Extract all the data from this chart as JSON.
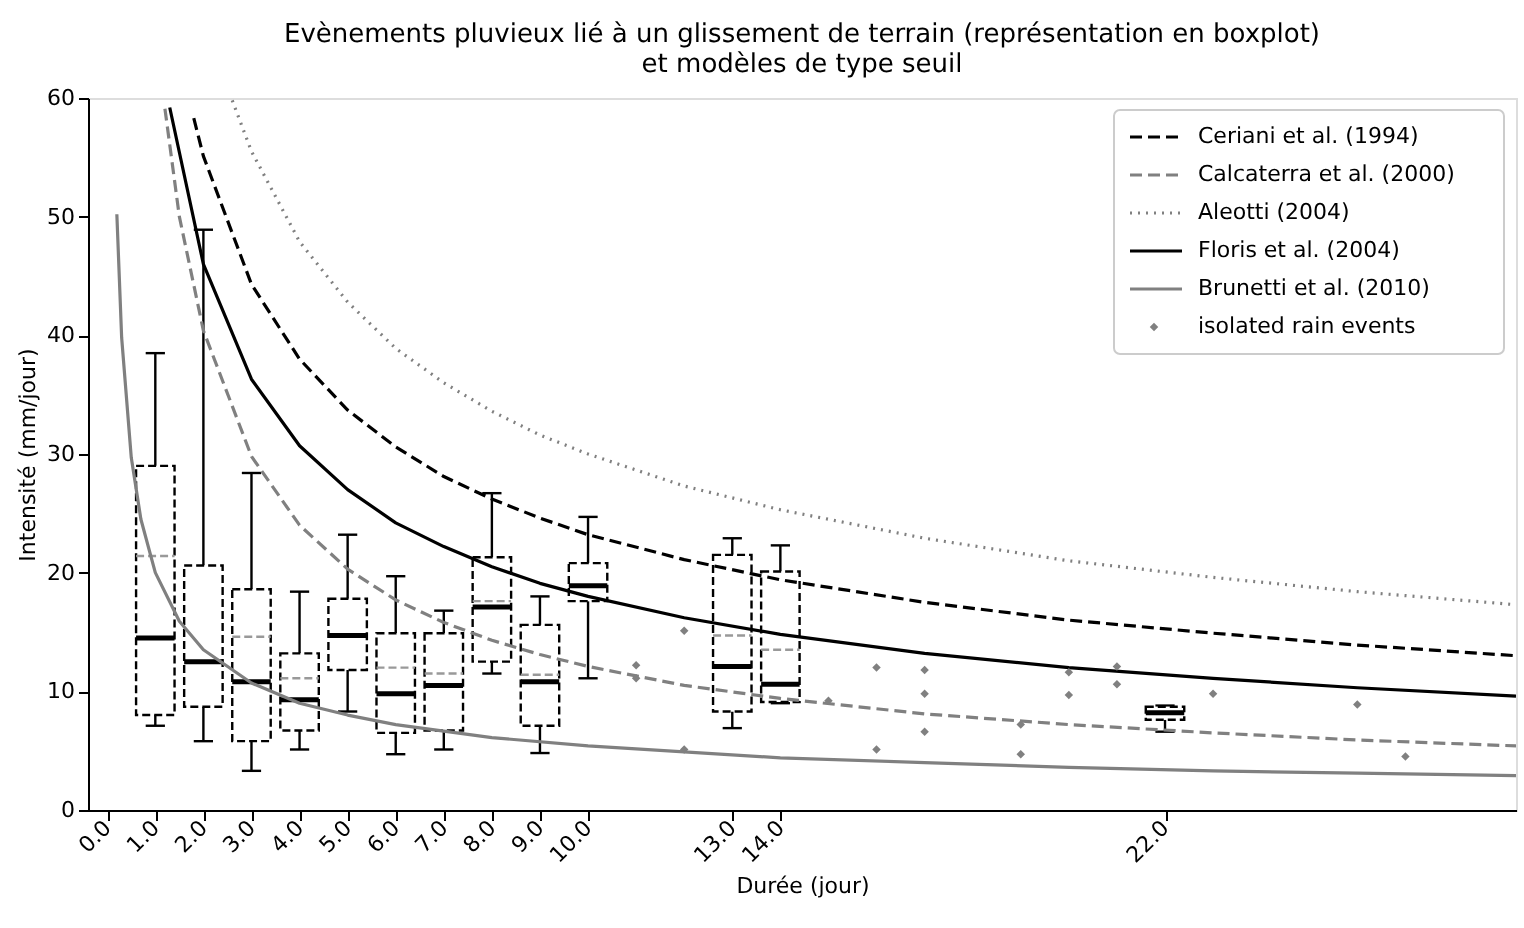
{
  "chart_data": {
    "type": "box",
    "title": "Evènements pluvieux lié à un glissement de terrain (représentation en boxplot)\net modèles de type seuil",
    "xlabel": "Durée (jour)",
    "ylabel": "Intensité (mm/jour)",
    "xlim": [
      -0.4,
      29.3
    ],
    "ylim": [
      0,
      60
    ],
    "xticks": [
      {
        "value": 0,
        "label": "0.0"
      },
      {
        "value": 1,
        "label": "1.0"
      },
      {
        "value": 2,
        "label": "2.0"
      },
      {
        "value": 3,
        "label": "3.0"
      },
      {
        "value": 4,
        "label": "4.0"
      },
      {
        "value": 5,
        "label": "5.0"
      },
      {
        "value": 6,
        "label": "6.0"
      },
      {
        "value": 7,
        "label": "7.0"
      },
      {
        "value": 8,
        "label": "8.0"
      },
      {
        "value": 9,
        "label": "9.0"
      },
      {
        "value": 10,
        "label": "10.0"
      },
      {
        "value": 13,
        "label": "13.0"
      },
      {
        "value": 14,
        "label": "14.0"
      },
      {
        "value": 22,
        "label": "22.0"
      }
    ],
    "yticks": [
      0,
      10,
      20,
      30,
      40,
      50,
      60
    ],
    "grid": false,
    "legend": "top right",
    "x": [
      1,
      2,
      3,
      4,
      5,
      6,
      7,
      8,
      9,
      10,
      13,
      14,
      22
    ],
    "boxes": [
      {
        "low": 7.1,
        "q1": 8.0,
        "median": 14.5,
        "q3": 29.0,
        "high": 38.5,
        "mean": 21.4
      },
      {
        "low": 5.8,
        "q1": 8.7,
        "median": 12.5,
        "q3": 20.6,
        "high": 48.9
      },
      {
        "low": 3.3,
        "q1": 5.8,
        "median": 10.8,
        "q3": 18.6,
        "high": 28.4,
        "mean": 14.6
      },
      {
        "low": 5.1,
        "q1": 6.7,
        "median": 9.3,
        "q3": 13.2,
        "high": 18.4,
        "mean": 11.1
      },
      {
        "low": 8.3,
        "q1": 11.8,
        "median": 14.7,
        "q3": 17.8,
        "high": 23.2
      },
      {
        "low": 4.7,
        "q1": 6.5,
        "median": 9.8,
        "q3": 14.9,
        "high": 19.7,
        "mean": 12.0
      },
      {
        "low": 5.1,
        "q1": 6.7,
        "median": 10.5,
        "q3": 14.9,
        "high": 16.8,
        "mean": 11.5
      },
      {
        "low": 11.5,
        "q1": 12.5,
        "median": 17.1,
        "q3": 21.3,
        "high": 26.7,
        "mean": 17.6
      },
      {
        "low": 4.8,
        "q1": 7.1,
        "median": 10.8,
        "q3": 15.6,
        "high": 18.0,
        "mean": 11.4
      },
      {
        "low": 11.1,
        "q1": 17.6,
        "median": 18.9,
        "q3": 20.8,
        "high": 24.7
      },
      {
        "low": 6.9,
        "q1": 8.3,
        "median": 12.1,
        "q3": 21.5,
        "high": 22.9,
        "mean": 14.7
      },
      {
        "low": 9.0,
        "q1": 9.1,
        "median": 10.6,
        "q3": 20.1,
        "high": 22.3,
        "mean": 13.5
      },
      {
        "low": 6.6,
        "q1": 7.6,
        "median": 8.2,
        "q3": 8.7,
        "high": 8.8
      }
    ],
    "series": [
      {
        "name": "Ceriani et al. (1994)",
        "type": "line",
        "color": "#000000",
        "line_style": "dashed",
        "x": [
          1.8,
          2,
          3,
          4,
          5,
          6,
          7,
          8,
          9,
          10,
          12,
          14,
          17,
          20,
          23,
          26,
          29.3
        ],
        "values": [
          58.3,
          55.1,
          44.3,
          38.0,
          33.7,
          30.6,
          28.1,
          26.2,
          24.6,
          23.2,
          21.1,
          19.4,
          17.5,
          16.0,
          14.9,
          13.9,
          13.0
        ]
      },
      {
        "name": "Calcaterra et al. (2000)",
        "type": "line",
        "color": "#808080",
        "line_style": "dashed",
        "x": [
          1.2,
          1.5,
          2,
          3,
          4,
          5,
          6,
          7,
          8,
          9,
          10,
          12,
          14,
          17,
          20,
          23,
          26,
          29.3
        ],
        "values": [
          59.1,
          50.0,
          40.4,
          29.8,
          24.0,
          20.3,
          17.7,
          15.8,
          14.3,
          13.1,
          12.1,
          10.5,
          9.4,
          8.1,
          7.2,
          6.5,
          5.9,
          5.4
        ]
      },
      {
        "name": "Aleotti (2004)",
        "type": "line",
        "color": "#808080",
        "line_style": "dotted",
        "x": [
          2.6,
          3,
          4,
          5,
          6,
          7,
          8,
          9,
          10,
          12,
          14,
          17,
          20,
          23,
          26,
          29.3
        ],
        "values": [
          59.8,
          55.5,
          47.9,
          42.8,
          38.9,
          36.0,
          33.6,
          31.6,
          30.0,
          27.3,
          25.3,
          22.9,
          21.0,
          19.6,
          18.4,
          17.3
        ]
      },
      {
        "name": "Floris et al. (2004)",
        "type": "line",
        "color": "#000000",
        "line_style": "solid",
        "x": [
          1.3,
          2,
          3,
          4,
          5,
          6,
          7,
          8,
          9,
          10,
          12,
          14,
          17,
          20,
          23,
          26,
          29.3
        ],
        "values": [
          59.2,
          46.0,
          36.3,
          30.7,
          27.0,
          24.2,
          22.2,
          20.5,
          19.1,
          18.0,
          16.2,
          14.8,
          13.2,
          12.0,
          11.1,
          10.3,
          9.6
        ]
      },
      {
        "name": "Brunetti et al. (2010)",
        "type": "line",
        "color": "#808080",
        "line_style": "solid",
        "x": [
          0.2,
          0.3,
          0.5,
          0.7,
          1,
          1.5,
          2,
          3,
          4,
          5,
          6,
          8,
          10,
          14,
          17,
          20,
          23,
          26,
          29.3
        ],
        "values": [
          50.2,
          39.8,
          29.7,
          24.5,
          20.0,
          15.9,
          13.5,
          10.7,
          9.0,
          8.0,
          7.2,
          6.1,
          5.4,
          4.4,
          4.0,
          3.6,
          3.3,
          3.1,
          2.9
        ]
      },
      {
        "name": "isolated rain events",
        "type": "scatter",
        "color": "#808080",
        "marker": "diamond",
        "x": [
          11,
          11,
          12,
          12,
          15,
          16,
          16,
          17,
          17,
          17,
          19,
          19,
          20,
          20,
          21,
          21,
          23,
          26,
          27
        ],
        "values": [
          12.2,
          11.1,
          15.1,
          5.1,
          9.2,
          12.0,
          5.1,
          11.8,
          9.8,
          6.6,
          7.2,
          4.7,
          11.6,
          9.7,
          12.1,
          10.6,
          9.8,
          8.9,
          4.5
        ]
      }
    ]
  }
}
